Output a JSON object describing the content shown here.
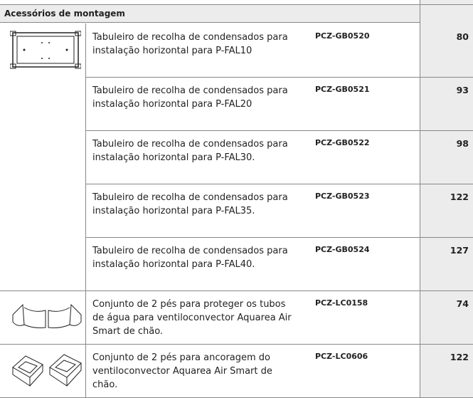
{
  "section": {
    "title": "Acessórios de montagem"
  },
  "table": {
    "rows": [
      {
        "description": "Tabuleiro de recolha de condensados para instalação horizontal para P-FAL10",
        "code": "PCZ-GB0520",
        "price": 80
      },
      {
        "description": "Tabuleiro de recolha de condensados para instalação horizontal para P-FAL20",
        "code": "PCZ-GB0521",
        "price": 93
      },
      {
        "description": "Tabuleiro de recolha de condensados para instalação horizontal para P-FAL30.",
        "code": "PCZ-GB0522",
        "price": 98
      },
      {
        "description": "Tabuleiro de recolha de condensados para instalação horizontal para P-FAL35.",
        "code": "PCZ-GB0523",
        "price": 122
      },
      {
        "description": "Tabuleiro de recolha de condensados para instalação horizontal para P-FAL40.",
        "code": "PCZ-GB0524",
        "price": 127
      },
      {
        "description": "Conjunto de 2 pés para proteger os tubos de água para ventiloconvector Aquarea Air Smart de chão.",
        "code": "PCZ-LC0158",
        "price": 74
      },
      {
        "description": "Conjunto de 2 pés para ancoragem do ventiloconvector Aquarea Air Smart de chão.",
        "code": "PCZ-LC0606",
        "price": 122
      }
    ]
  }
}
